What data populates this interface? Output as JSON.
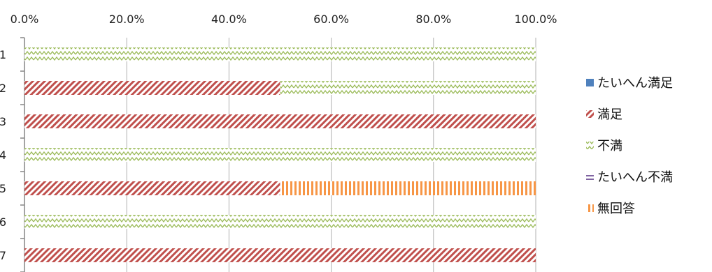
{
  "chart_data": {
    "type": "bar",
    "orientation": "horizontal",
    "stacked": true,
    "percent": true,
    "categories": [
      "1",
      "2",
      "3",
      "4",
      "5",
      "6",
      "7"
    ],
    "x_ticks": [
      "0.0%",
      "20.0%",
      "40.0%",
      "60.0%",
      "80.0%",
      "100.0%"
    ],
    "xlim": [
      0,
      100
    ],
    "grid": true,
    "legend_position": "right",
    "series": [
      {
        "name": "たいへん満足",
        "values": [
          0,
          0,
          0,
          0,
          0,
          0,
          0
        ],
        "color": "#4f81bd",
        "pattern": "solid"
      },
      {
        "name": "満足",
        "values": [
          0,
          50,
          100,
          0,
          50,
          0,
          100
        ],
        "color": "#c0504d",
        "pattern": "diagonal"
      },
      {
        "name": "不満",
        "values": [
          100,
          50,
          0,
          100,
          0,
          100,
          0
        ],
        "color": "#9bbb59",
        "pattern": "zigzag"
      },
      {
        "name": "たいへん不満",
        "values": [
          0,
          0,
          0,
          0,
          0,
          0,
          0
        ],
        "color": "#8064a2",
        "pattern": "horizontal"
      },
      {
        "name": "無回答",
        "values": [
          0,
          0,
          0,
          0,
          50,
          0,
          0
        ],
        "color": "#f79646",
        "pattern": "vertical"
      }
    ]
  }
}
